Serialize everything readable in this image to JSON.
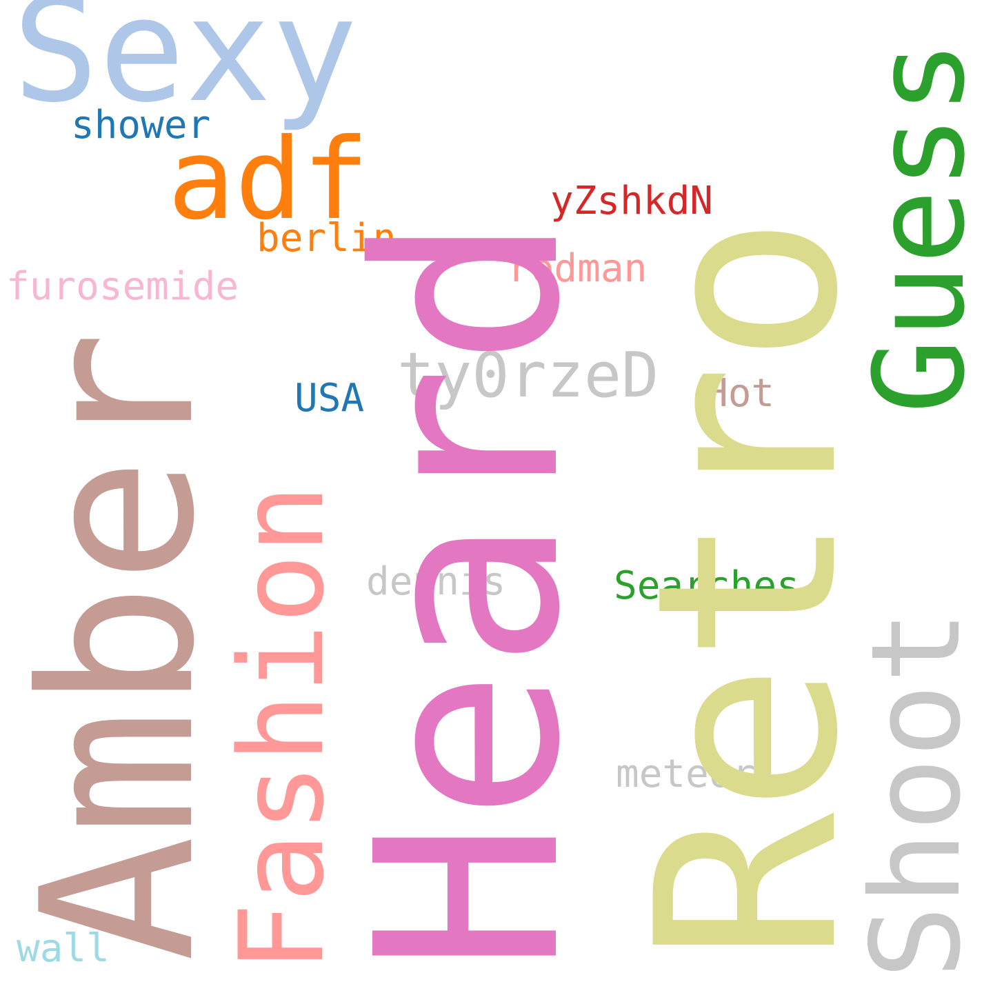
{
  "words": {
    "amber": {
      "text": "Amber",
      "color": "#c49c94"
    },
    "heard": {
      "text": "Heard",
      "color": "#e377c2"
    },
    "retro": {
      "text": "Retro",
      "color": "#dbdb8d"
    },
    "sexy": {
      "text": "Sexy",
      "color": "#aec7e8"
    },
    "guess": {
      "text": "Guess",
      "color": "#2ca02c"
    },
    "adf": {
      "text": "adf",
      "color": "#ff7f0e"
    },
    "shower": {
      "text": "shower",
      "color": "#1f77b4"
    },
    "yzshkdn": {
      "text": "yZshkdN",
      "color": "#d62728"
    },
    "berlin": {
      "text": "berlin",
      "color": "#ff7f0e"
    },
    "rodman": {
      "text": "rodman",
      "color": "#ff9896"
    },
    "furosemide": {
      "text": "furosemide",
      "color": "#f7b6d2"
    },
    "ty0rzed": {
      "text": "ty0rzeD",
      "color": "#c7c7c7"
    },
    "hot": {
      "text": "Hot",
      "color": "#c49c94"
    },
    "usa": {
      "text": "USA",
      "color": "#1f77b4"
    },
    "fashion": {
      "text": "Fashion",
      "color": "#ff9896"
    },
    "dennis": {
      "text": "dennis",
      "color": "#c7c7c7"
    },
    "searches": {
      "text": "Searches",
      "color": "#2ca02c"
    },
    "shoot": {
      "text": "Shoot",
      "color": "#c7c7c7"
    },
    "meteor": {
      "text": "meteor",
      "color": "#c7c7c7"
    },
    "wall": {
      "text": "wall",
      "color": "#9edae5"
    }
  }
}
